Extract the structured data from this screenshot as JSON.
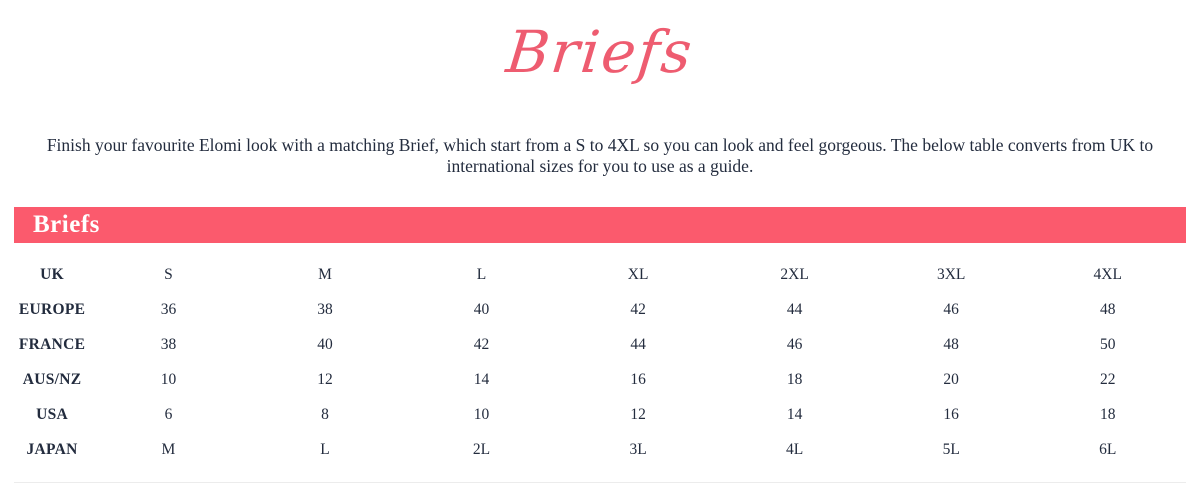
{
  "page": {
    "script_title": "Briefs",
    "intro": "Finish your favourite Elomi look with a matching Brief, which start from a S to 4XL so you can look and feel gorgeous. The below table converts from UK to international sizes for you to use as a guide.",
    "banner_title": "Briefs"
  },
  "colors": {
    "banner_background": "#fb5a6d",
    "script_pink": "#ee5c70",
    "body_text": "#232c3e",
    "banner_text": "#ffffff"
  },
  "size_table": {
    "rows": [
      {
        "label": "UK",
        "values": [
          "S",
          "M",
          "L",
          "XL",
          "2XL",
          "3XL",
          "4XL"
        ]
      },
      {
        "label": "EUROPE",
        "values": [
          "36",
          "38",
          "40",
          "42",
          "44",
          "46",
          "48"
        ]
      },
      {
        "label": "FRANCE",
        "values": [
          "38",
          "40",
          "42",
          "44",
          "46",
          "48",
          "50"
        ]
      },
      {
        "label": "AUS/NZ",
        "values": [
          "10",
          "12",
          "14",
          "16",
          "18",
          "20",
          "22"
        ]
      },
      {
        "label": "USA",
        "values": [
          "6",
          "8",
          "10",
          "12",
          "14",
          "16",
          "18"
        ]
      },
      {
        "label": "JAPAN",
        "values": [
          "M",
          "L",
          "2L",
          "3L",
          "4L",
          "5L",
          "6L"
        ]
      }
    ]
  }
}
